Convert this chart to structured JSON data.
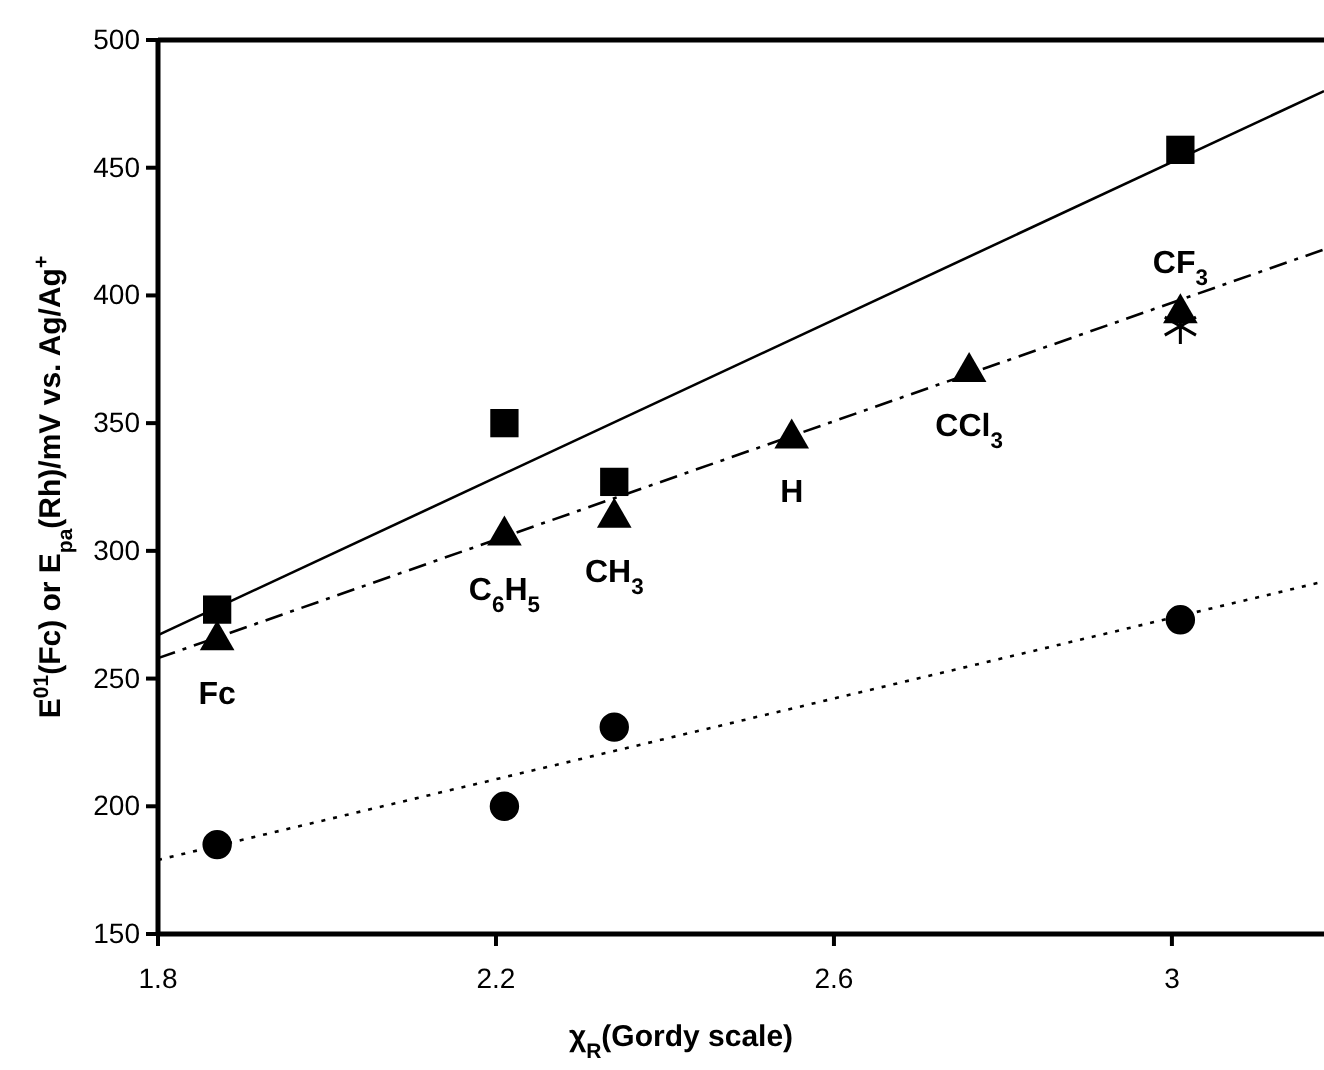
{
  "chart_data": {
    "type": "scatter",
    "xlabel": "χ$_{R}$(Gordy scale)",
    "ylabel": "E$^{01}$(Fc) or E$_{pa}$(Rh)/mV vs. Ag/Ag$^{+}$",
    "xlim": [
      1.8,
      3.18
    ],
    "ylim": [
      150,
      500
    ],
    "xticks": [
      1.8,
      2.2,
      2.6,
      3
    ],
    "yticks": [
      150,
      200,
      250,
      300,
      350,
      400,
      450,
      500
    ],
    "grid": false,
    "series": [
      {
        "type": "line",
        "color": "#000000",
        "x": [
          1.8,
          3.18
        ],
        "values": [
          267,
          480
        ],
        "marker": "none",
        "line_style": "solid"
      },
      {
        "type": "line",
        "color": "#000000",
        "x": [
          1.8,
          3.18
        ],
        "values": [
          258,
          418
        ],
        "marker": "none",
        "line_style": "dashed"
      },
      {
        "type": "line",
        "color": "#000000",
        "x": [
          1.8,
          3.18
        ],
        "values": [
          179,
          288
        ],
        "marker": "none",
        "line_style": "dotted"
      },
      {
        "color": "#000000",
        "x": [
          1.87,
          2.21,
          2.34,
          3.01
        ],
        "values": [
          277,
          350,
          327,
          457
        ],
        "marker": "square"
      },
      {
        "color": "#000000",
        "x": [
          1.87,
          2.21,
          2.34,
          2.55,
          2.76,
          3.01
        ],
        "values": [
          265,
          306,
          313,
          344,
          370,
          393
        ],
        "marker": "triangle"
      },
      {
        "color": "#000000",
        "x": [
          1.87,
          2.21,
          2.34,
          3.01
        ],
        "values": [
          185,
          200,
          231,
          273
        ],
        "marker": "circle"
      },
      {
        "color": "#000000",
        "x": [
          3.01
        ],
        "values": [
          388
        ],
        "marker": "cross"
      }
    ],
    "annotations": [
      {
        "text": "Fc",
        "x": 1.87,
        "y": 265
      },
      {
        "text": "C$_{6}$H$_{5}$",
        "x": 2.21,
        "y": 306
      },
      {
        "text": "CH$_{3}$",
        "x": 2.34,
        "y": 313
      },
      {
        "text": "H",
        "x": 2.55,
        "y": 344
      },
      {
        "text": "CCl$_{3}$",
        "x": 2.76,
        "y": 370
      },
      {
        "text": "CF$_{3}$",
        "x": 3.01,
        "y": 393
      }
    ]
  }
}
